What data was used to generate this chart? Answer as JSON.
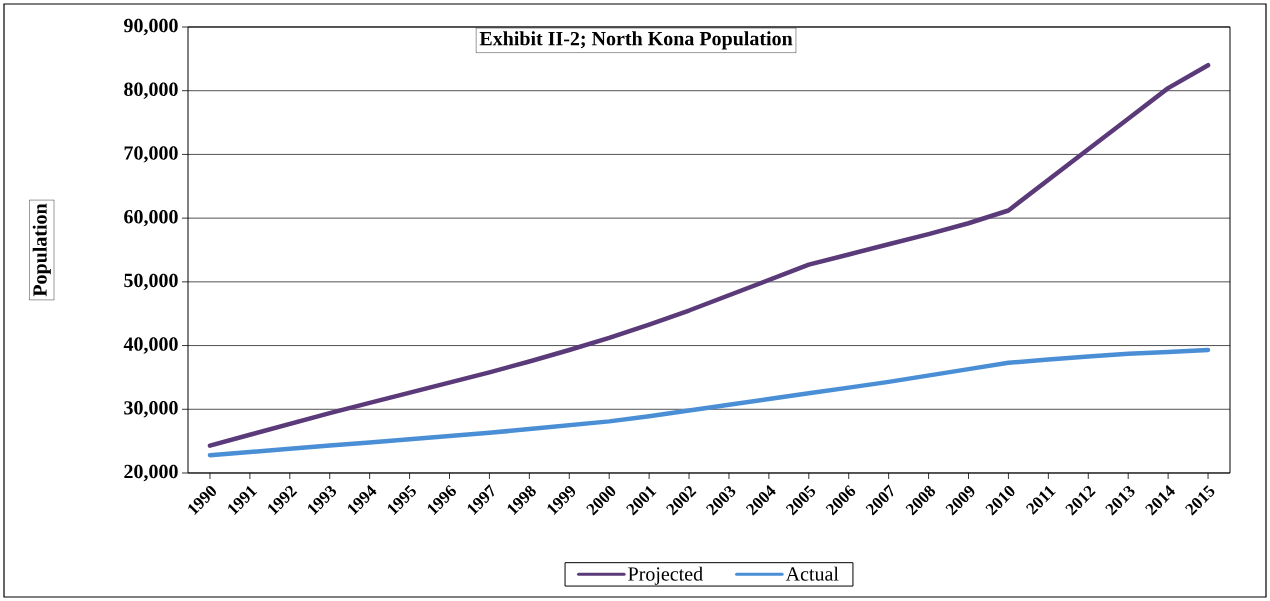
{
  "chart_data": {
    "type": "line",
    "title": "Exhibit II-2; North Kona Population",
    "ylabel": "Population",
    "categories": [
      "1990",
      "1991",
      "1992",
      "1993",
      "1994",
      "1995",
      "1996",
      "1997",
      "1998",
      "1999",
      "2000",
      "2001",
      "2002",
      "2003",
      "2004",
      "2005",
      "2006",
      "2007",
      "2008",
      "2009",
      "2010",
      "2011",
      "2012",
      "2013",
      "2014",
      "2015"
    ],
    "series": [
      {
        "name": "Projected",
        "color": "#5b3a7a",
        "values": [
          24300,
          26000,
          27700,
          29400,
          31000,
          32600,
          34200,
          35800,
          37500,
          39300,
          41200,
          43300,
          45500,
          47900,
          50300,
          52700,
          54300,
          55900,
          57500,
          59200,
          61200,
          66000,
          70800,
          75600,
          80400,
          84000
        ]
      },
      {
        "name": "Actual",
        "color": "#4a8fd6",
        "values": [
          22800,
          23300,
          23800,
          24300,
          24800,
          25300,
          25800,
          26300,
          26900,
          27500,
          28100,
          28900,
          29800,
          30700,
          31600,
          32500,
          33400,
          34300,
          35300,
          36300,
          37300,
          37800,
          38300,
          38700,
          39000,
          39300
        ]
      }
    ],
    "ylim": [
      20000,
      90000
    ],
    "yticks": [
      {
        "value": 20000,
        "label": "20,000"
      },
      {
        "value": 30000,
        "label": "30,000"
      },
      {
        "value": 40000,
        "label": "40,000"
      },
      {
        "value": 50000,
        "label": "50,000"
      },
      {
        "value": 60000,
        "label": "60,000"
      },
      {
        "value": 70000,
        "label": "70,000"
      },
      {
        "value": 80000,
        "label": "80,000"
      },
      {
        "value": 90000,
        "label": "90,000"
      }
    ],
    "grid": "y",
    "legend": "bottom",
    "marker": "none",
    "line_style": "solid"
  }
}
